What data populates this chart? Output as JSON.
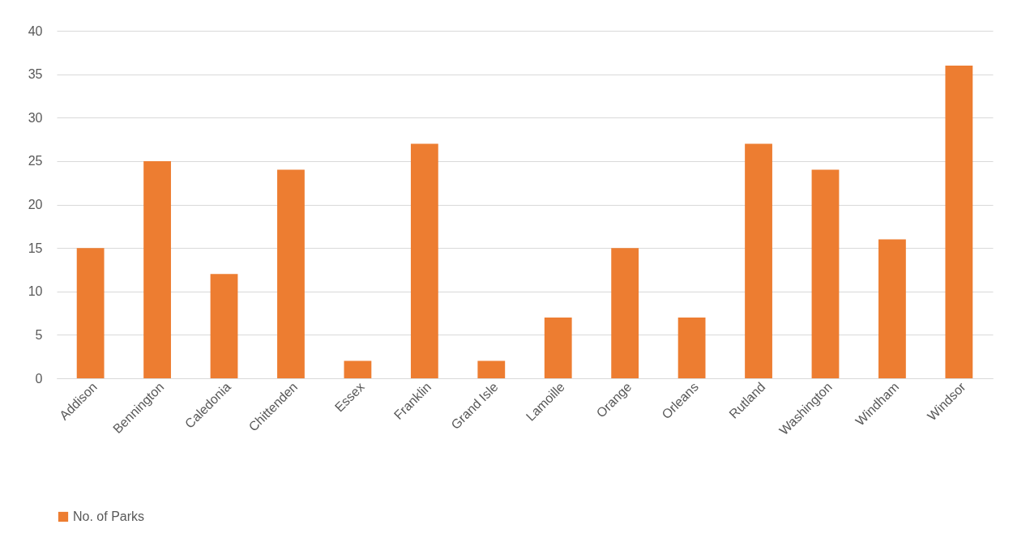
{
  "chart_data": {
    "type": "bar",
    "categories": [
      "Addison",
      "Bennington",
      "Caledonia",
      "Chittenden",
      "Essex",
      "Franklin",
      "Grand Isle",
      "Lamoille",
      "Orange",
      "Orleans",
      "Rutland",
      "Washington",
      "Windham",
      "Windsor"
    ],
    "series": [
      {
        "name": "No. of Parks",
        "color": "#ed7d31",
        "values": [
          15,
          25,
          12,
          24,
          2,
          27,
          2,
          7,
          15,
          7,
          27,
          24,
          16,
          36
        ]
      }
    ],
    "ylim": [
      0,
      40
    ],
    "yticks": [
      0,
      5,
      10,
      15,
      20,
      25,
      30,
      35,
      40
    ],
    "grid": "y",
    "legend": "bottom"
  }
}
